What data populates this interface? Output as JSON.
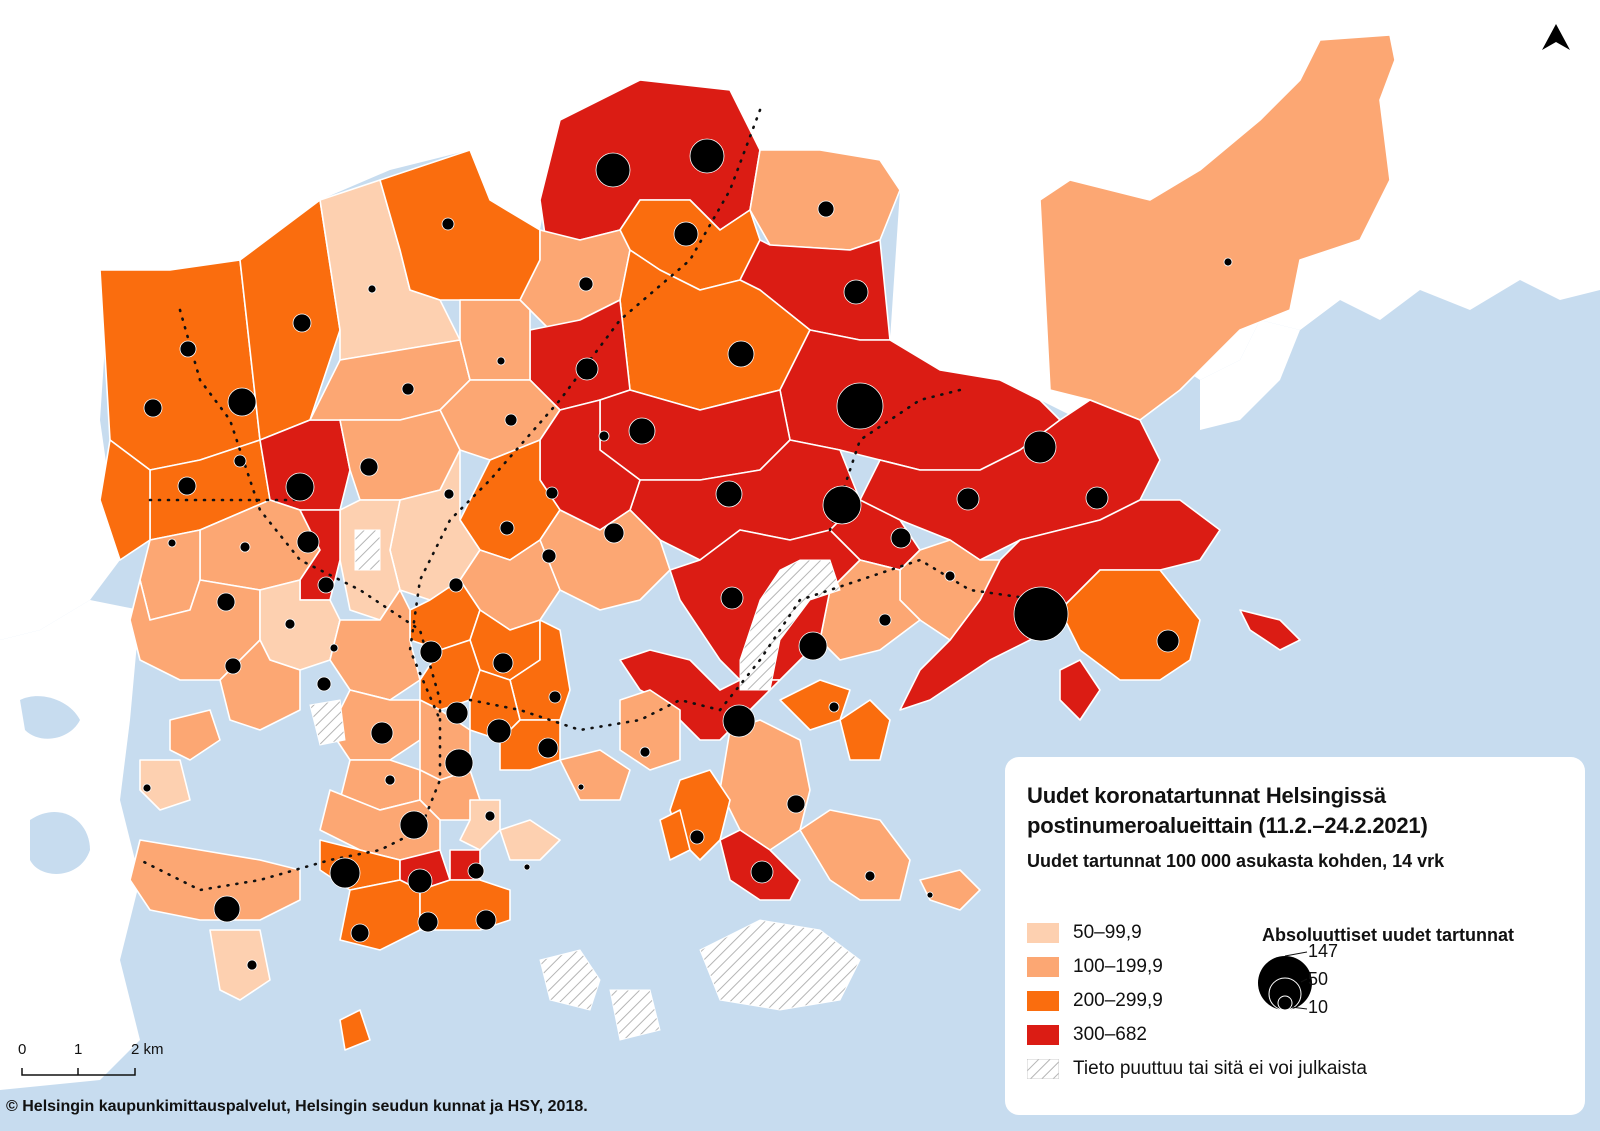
{
  "title_line1": "Uudet koronatartunnat Helsingissä",
  "title_line2": "postinumeroalueittain (11.2.–24.2.2021)",
  "subtitle": "Uudet tartunnat 100 000 asukasta kohden, 14 vrk",
  "classes": [
    {
      "label": "50–99,9",
      "color": "#fdd0b0"
    },
    {
      "label": "100–199,9",
      "color": "#fca773"
    },
    {
      "label": "200–299,9",
      "color": "#fa6d0e"
    },
    {
      "label": "300–682",
      "color": "#db1c14"
    }
  ],
  "missing_label": "Tieto puuttuu tai sitä ei voi julkaista",
  "size_legend": {
    "title": "Absoluuttiset uudet tartunnat",
    "values": [
      "147",
      "50",
      "10"
    ]
  },
  "scale": {
    "labels": [
      "0",
      "1",
      "2 km"
    ]
  },
  "copyright": "© Helsingin kaupunkimittauspalvelut, Helsingin seudun kunnat ja HSY, 2018.",
  "north_arrow": "north-arrow-icon",
  "colors": {
    "water": "#c7dcef",
    "land_boundary": "#ffffff"
  }
}
